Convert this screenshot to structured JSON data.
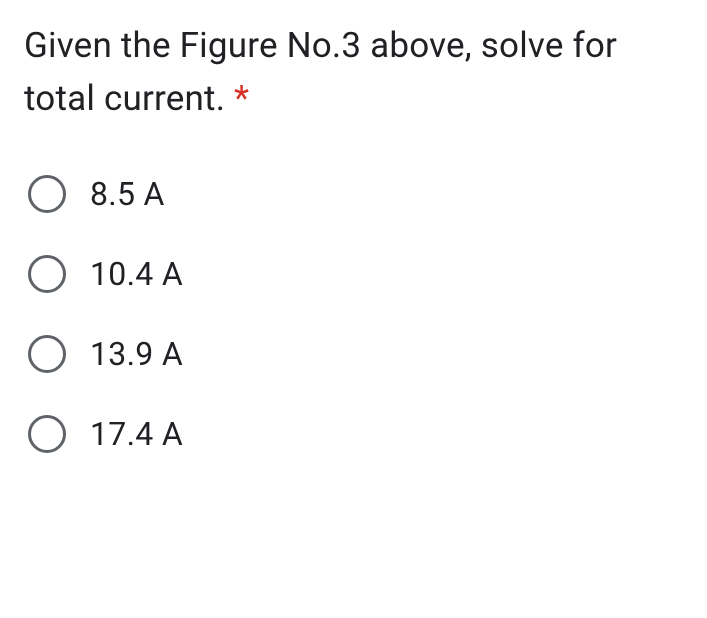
{
  "question": {
    "text": "Given the Figure No.3 above, solve for total current. ",
    "required_marker": "*",
    "text_color": "#202124",
    "asterisk_color": "#d93025",
    "font_size": 35
  },
  "options": [
    {
      "label": "8.5 A",
      "selected": false
    },
    {
      "label": "10.4 A",
      "selected": false
    },
    {
      "label": "13.9 A",
      "selected": false
    },
    {
      "label": "17.4 A",
      "selected": false
    }
  ],
  "styling": {
    "background_color": "#ffffff",
    "radio_border_color": "#5f6368",
    "radio_size": 38,
    "radio_border_width": 3,
    "option_font_size": 32,
    "option_gap": 42
  }
}
